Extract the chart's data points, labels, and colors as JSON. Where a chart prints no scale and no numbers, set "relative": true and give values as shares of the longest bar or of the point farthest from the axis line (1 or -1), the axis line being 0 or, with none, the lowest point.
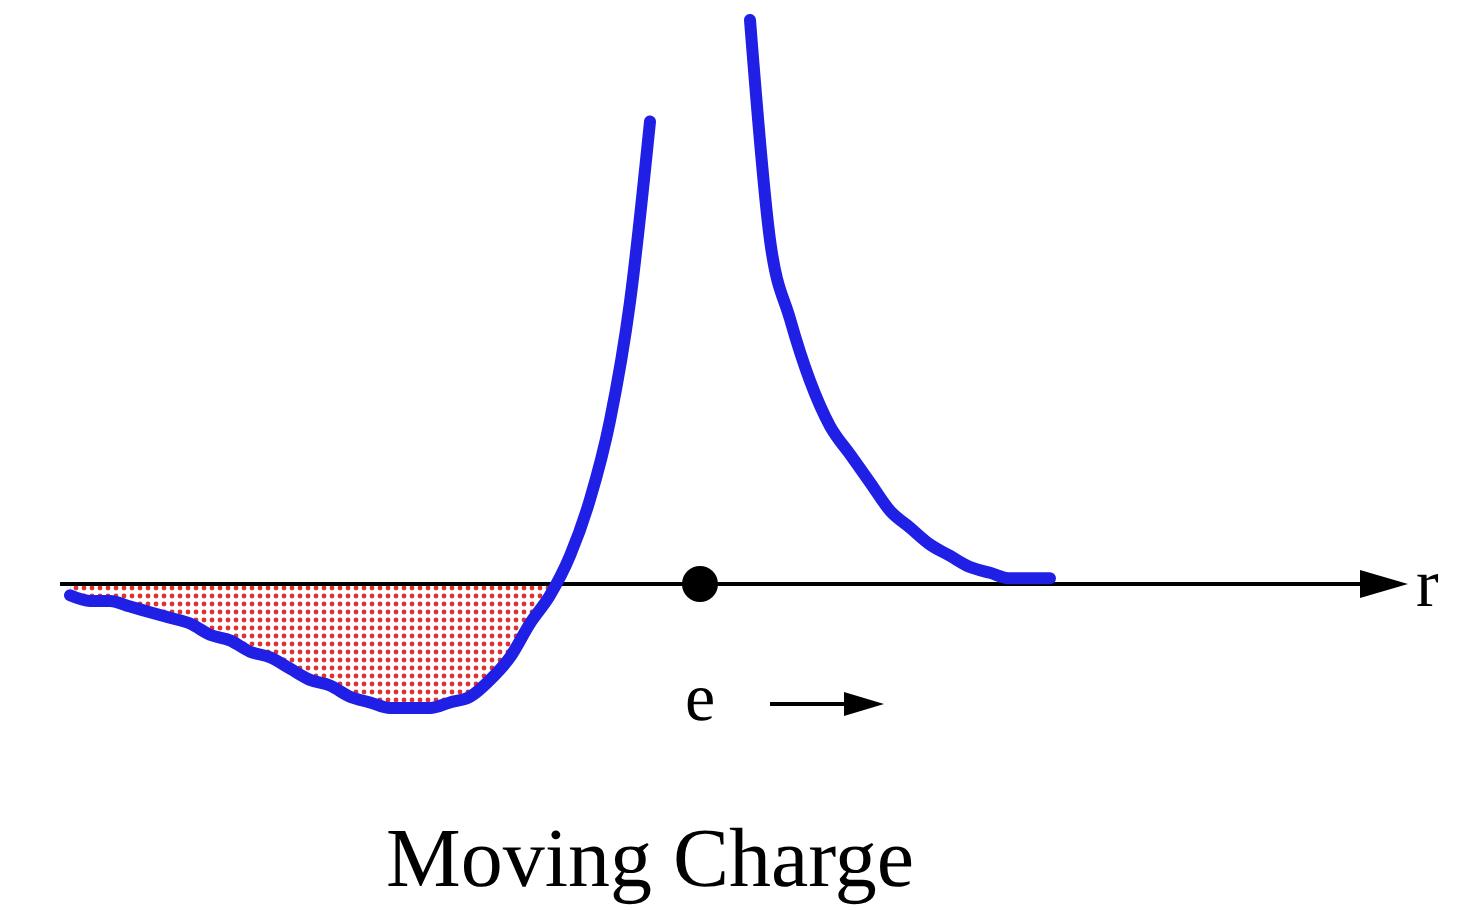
{
  "chart_data": {
    "type": "line",
    "title": "Moving Charge",
    "annotations": [
      "r",
      "e"
    ],
    "relative": true,
    "categories": [
      null,
      null,
      null,
      null,
      null,
      null,
      null,
      null,
      null,
      null,
      null,
      null,
      null,
      null,
      null,
      null,
      null,
      null,
      null,
      null,
      null,
      null,
      null,
      null,
      null,
      null,
      null,
      null,
      null,
      null,
      null,
      null,
      null,
      null,
      null,
      null,
      null,
      null,
      null,
      null,
      null,
      null,
      null,
      null,
      null,
      null,
      null,
      null,
      null,
      null
    ],
    "series": [
      {
        "color": "#1f1fe6",
        "values": [
          -0.02,
          -0.03,
          -0.03,
          -0.04,
          -0.05,
          -0.06,
          -0.07,
          -0.09,
          -0.1,
          -0.12,
          -0.13,
          -0.15,
          -0.17,
          -0.18,
          -0.2,
          -0.21,
          -0.22,
          -0.22,
          -0.22,
          -0.21,
          -0.2,
          -0.17,
          -0.13,
          -0.07,
          -0.02,
          0.05,
          0.15,
          0.29,
          0.5,
          0.82,
          null,
          null,
          null,
          null,
          1.0,
          0.61,
          0.47,
          0.36,
          0.28,
          0.23,
          0.18,
          0.13,
          0.1,
          0.07,
          0.05,
          0.03,
          0.02,
          0.01,
          0.01,
          0.01
        ]
      },
      {
        "type": "area",
        "color": "#e03030",
        "values": [
          -0.02,
          -0.03,
          -0.03,
          -0.04,
          -0.05,
          -0.06,
          -0.07,
          -0.09,
          -0.1,
          -0.12,
          -0.13,
          -0.15,
          -0.17,
          -0.18,
          -0.2,
          -0.21,
          -0.22,
          -0.22,
          -0.22,
          -0.21,
          -0.2,
          -0.17,
          -0.13,
          -0.07,
          -0.02,
          null,
          null,
          null,
          null,
          null,
          null,
          null,
          null,
          null,
          null,
          null,
          null,
          null,
          null,
          null,
          null,
          null,
          null,
          null,
          null,
          null,
          null,
          null,
          null,
          null
        ]
      }
    ]
  }
}
